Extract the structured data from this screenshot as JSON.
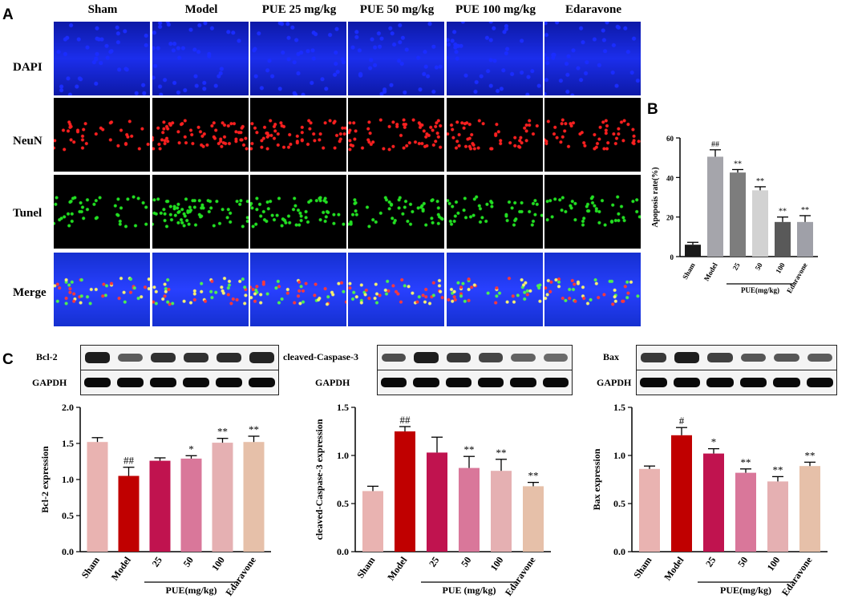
{
  "panels": {
    "a": "A",
    "b": "B",
    "c": "C"
  },
  "micrograph": {
    "columns": [
      "Sham",
      "Model",
      "PUE 25 mg/kg",
      "PUE 50 mg/kg",
      "PUE 100 mg/kg",
      "Edaravone"
    ],
    "rows": [
      "DAPI",
      "NeuN",
      "Tunel",
      "Merge"
    ],
    "colors": {
      "DAPI": "#1a2cff",
      "NeuN": "#ff2020",
      "Tunel": "#22e022",
      "Merge_bg": "#1a1aa8"
    }
  },
  "blots": [
    {
      "target": "Bcl-2",
      "loading": "GAPDH",
      "target_intensity": [
        0.95,
        0.5,
        0.8,
        0.8,
        0.85,
        0.9
      ]
    },
    {
      "target": "cleaved-Caspase-3",
      "loading": "GAPDH",
      "target_intensity": [
        0.6,
        0.95,
        0.75,
        0.65,
        0.45,
        0.4
      ]
    },
    {
      "target": "Bax",
      "loading": "GAPDH",
      "target_intensity": [
        0.75,
        0.95,
        0.7,
        0.55,
        0.55,
        0.5
      ]
    }
  ],
  "chart_data": [
    {
      "id": "B",
      "type": "bar",
      "categories": [
        "Sham",
        "Model",
        "25",
        "50",
        "100",
        "Edaravone"
      ],
      "values": [
        6,
        50.5,
        42.5,
        33.5,
        17.5,
        17.5
      ],
      "errors": [
        1.2,
        3.5,
        1.5,
        1.8,
        2.5,
        3.2
      ],
      "annotations": [
        "",
        "##",
        "**",
        "**",
        "**",
        "**"
      ],
      "colors": [
        "#1a1a1a",
        "#a5a5ab",
        "#7d7d7d",
        "#d2d2d2",
        "#595959",
        "#9fa0a8"
      ],
      "ylabel": "Apoposis rate(%)",
      "ylim": [
        0,
        60
      ],
      "yticks": [
        0,
        20,
        40,
        60
      ],
      "group_label": "PUE(mg/kg)"
    },
    {
      "id": "C1",
      "type": "bar",
      "categories": [
        "Sham",
        "Model",
        "25",
        "50",
        "100",
        "Edaravone"
      ],
      "values": [
        1.52,
        1.05,
        1.26,
        1.29,
        1.51,
        1.52
      ],
      "errors": [
        0.06,
        0.12,
        0.04,
        0.04,
        0.06,
        0.08
      ],
      "annotations": [
        "",
        "##",
        "",
        "*",
        "**",
        "**"
      ],
      "colors": [
        "#e9b3b1",
        "#c00000",
        "#c0134f",
        "#d9779a",
        "#e5b0b2",
        "#e6c0a9"
      ],
      "ylabel": "Bcl-2 expression",
      "ylim": [
        0,
        2.0
      ],
      "yticks": [
        "0.0",
        "0.5",
        "1.0",
        "1.5",
        "2.0"
      ],
      "group_label": "PUE(mg/kg)"
    },
    {
      "id": "C2",
      "type": "bar",
      "categories": [
        "Sham",
        "Model",
        "25",
        "50",
        "100",
        "Edaravone"
      ],
      "values": [
        0.63,
        1.25,
        1.03,
        0.87,
        0.84,
        0.68
      ],
      "errors": [
        0.05,
        0.05,
        0.16,
        0.12,
        0.12,
        0.04
      ],
      "annotations": [
        "",
        "##",
        "",
        "**",
        "**",
        "**"
      ],
      "colors": [
        "#e9b3b1",
        "#c00000",
        "#c0134f",
        "#d9779a",
        "#e5b0b2",
        "#e6c0a9"
      ],
      "ylabel": "cleaved-Caspase-3 expression",
      "ylim": [
        0,
        1.5
      ],
      "yticks": [
        "0.0",
        "0.5",
        "1.0",
        "1.5"
      ],
      "group_label": "PUE (mg/kg)"
    },
    {
      "id": "C3",
      "type": "bar",
      "categories": [
        "Sham",
        "Model",
        "25",
        "50",
        "100",
        "Edaravone"
      ],
      "values": [
        0.86,
        1.21,
        1.02,
        0.82,
        0.73,
        0.89
      ],
      "errors": [
        0.03,
        0.08,
        0.05,
        0.04,
        0.05,
        0.04
      ],
      "annotations": [
        "",
        "#",
        "*",
        "**",
        "**",
        "**"
      ],
      "colors": [
        "#e9b3b1",
        "#c00000",
        "#c0134f",
        "#d9779a",
        "#e5b0b2",
        "#e6c0a9"
      ],
      "ylabel": "Bax expression",
      "ylim": [
        0,
        1.5
      ],
      "yticks": [
        "0.0",
        "0.5",
        "1.0",
        "1.5"
      ],
      "group_label": "PUE(mg/kg)"
    }
  ]
}
